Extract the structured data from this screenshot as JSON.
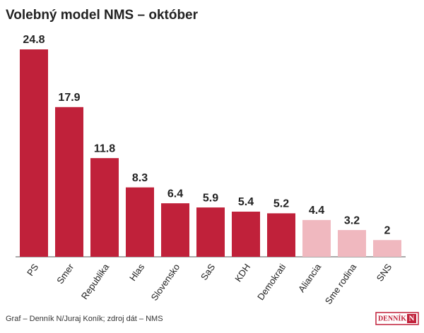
{
  "chart_data": {
    "type": "bar",
    "title": "Volebný model NMS – október",
    "categories": [
      "PS",
      "Smer",
      "Republika",
      "Hlas",
      "Slovensko",
      "SaS",
      "KDH",
      "Demokrati",
      "Aliancia",
      "Sme rodina",
      "SNS"
    ],
    "values": [
      24.8,
      17.9,
      11.8,
      8.3,
      6.4,
      5.9,
      5.4,
      5.2,
      4.4,
      3.2,
      2
    ],
    "colors": [
      "#c0213a",
      "#c0213a",
      "#c0213a",
      "#c0213a",
      "#c0213a",
      "#c0213a",
      "#c0213a",
      "#c0213a",
      "#f0b8bf",
      "#f0b8bf",
      "#f0b8bf"
    ],
    "source": "Graf – Denník N/Juraj Koník; zdroj dát – NMS",
    "logo_text": "DENNÍK",
    "logo_mark": "N"
  }
}
